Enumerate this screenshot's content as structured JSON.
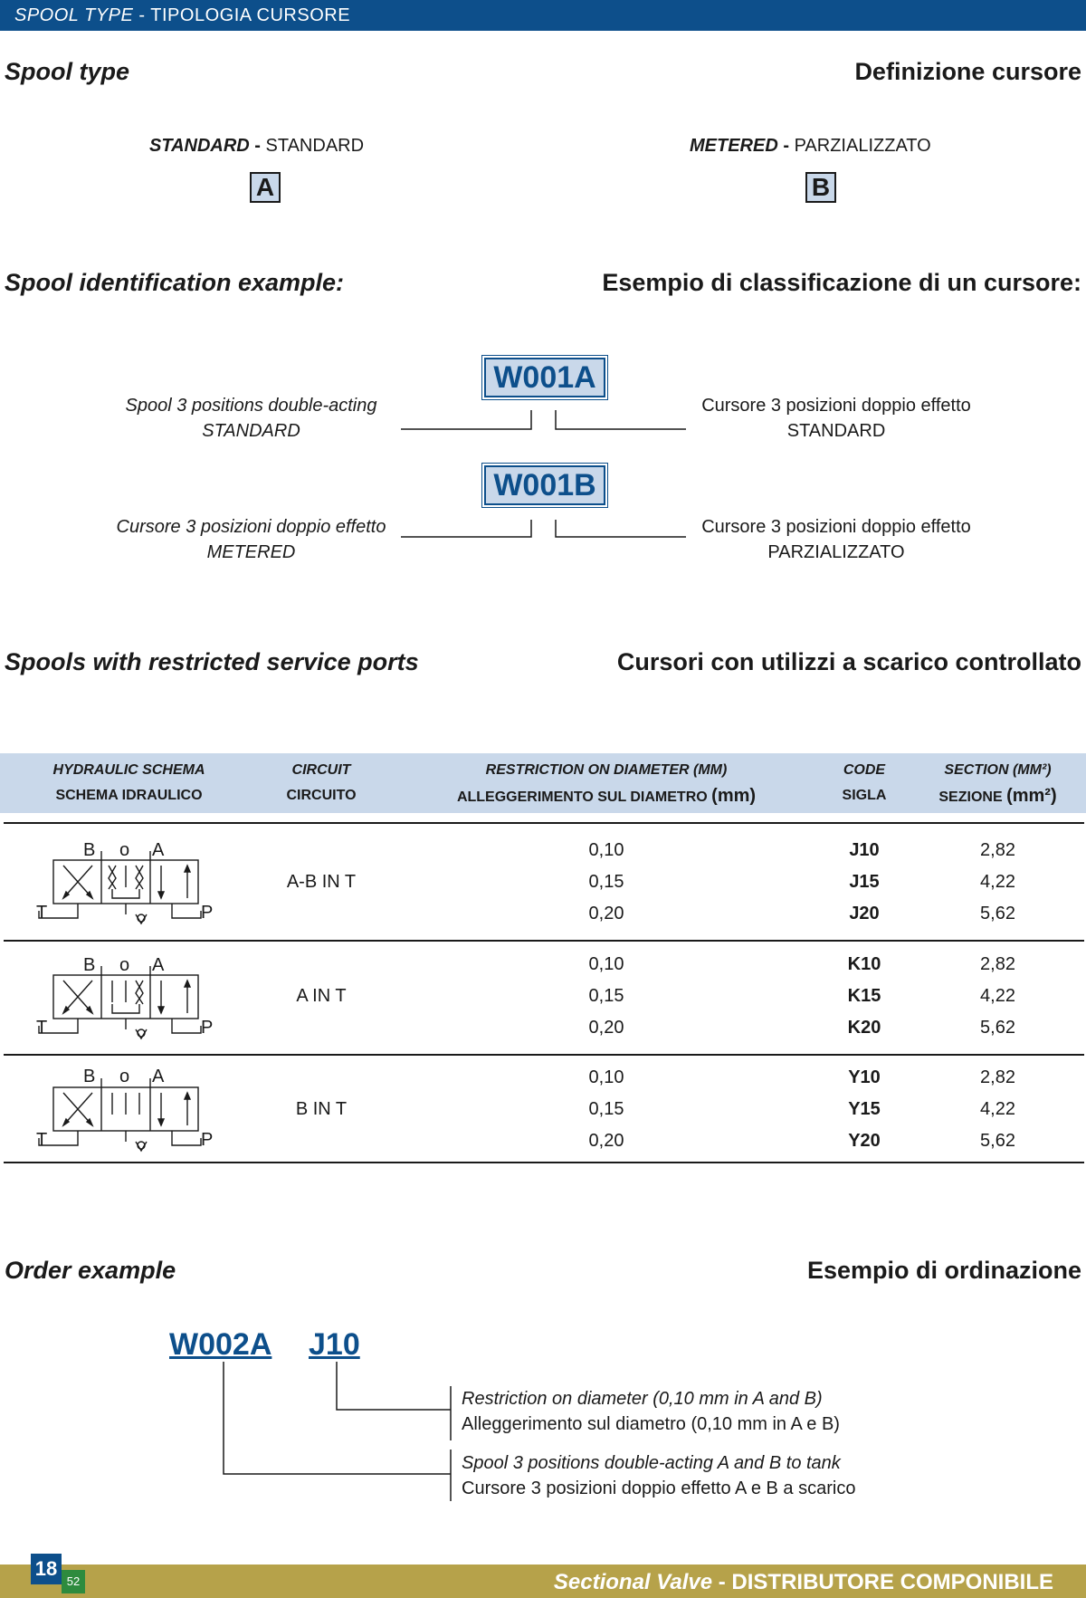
{
  "header": {
    "title_en": "SPOOL TYPE",
    "sep": " - ",
    "title_it": "TIPOLOGIA CURSORE"
  },
  "spool_type": {
    "heading_en": "Spool type",
    "heading_it": "Definizione cursore",
    "standard": {
      "en": "STANDARD",
      "sep": " - ",
      "it": "STANDARD",
      "letter": "A"
    },
    "metered": {
      "en": "METERED",
      "sep": " - ",
      "it": "PARZIALIZZATO",
      "letter": "B"
    }
  },
  "example": {
    "heading_en": "Spool identification example:",
    "heading_it": "Esempio di classificazione di un cursore:",
    "code_a": "W001A",
    "code_b": "W001B",
    "a_left_1": "Spool 3 positions double-acting",
    "a_left_2": "STANDARD",
    "a_right_1": "Cursore 3 posizioni doppio effetto",
    "a_right_2": "STANDARD",
    "b_left_1": "Cursore 3 posizioni doppio effetto",
    "b_left_2": "METERED",
    "b_right_1": "Cursore 3 posizioni doppio effetto",
    "b_right_2": "PARZIALIZZATO"
  },
  "restricted": {
    "heading_en": "Spools with restricted service ports",
    "heading_it": "Cursori con utilizzi a scarico controllato"
  },
  "table": {
    "headers": {
      "schema_en": "HYDRAULIC SCHEMA",
      "schema_it": "SCHEMA IDRAULICO",
      "circuit_en": "CIRCUIT",
      "circuit_it": "CIRCUITO",
      "restriction_en": "RESTRICTION ON DIAMETER",
      "restriction_en_unit": "(MM)",
      "restriction_it": "ALLEGGERIMENTO SUL DIAMETRO",
      "restriction_it_unit": "(mm)",
      "code_en": "CODE",
      "code_it": "SIGLA",
      "section_en": "SECTION",
      "section_en_unit": "(MM²)",
      "section_it": "SEZIONE",
      "section_it_unit": "(mm²)"
    },
    "symbol_labels": {
      "b": "B",
      "o": "o",
      "a": "A",
      "t": "T",
      "p": "P"
    },
    "groups": [
      {
        "circuit": "A-B IN T",
        "rows": [
          {
            "diameter": "0,10",
            "code": "J10",
            "section": "2,82"
          },
          {
            "diameter": "0,15",
            "code": "J15",
            "section": "4,22"
          },
          {
            "diameter": "0,20",
            "code": "J20",
            "section": "5,62"
          }
        ]
      },
      {
        "circuit": "A IN T",
        "rows": [
          {
            "diameter": "0,10",
            "code": "K10",
            "section": "2,82"
          },
          {
            "diameter": "0,15",
            "code": "K15",
            "section": "4,22"
          },
          {
            "diameter": "0,20",
            "code": "K20",
            "section": "5,62"
          }
        ]
      },
      {
        "circuit": "B IN T",
        "rows": [
          {
            "diameter": "0,10",
            "code": "Y10",
            "section": "2,82"
          },
          {
            "diameter": "0,15",
            "code": "Y15",
            "section": "4,22"
          },
          {
            "diameter": "0,20",
            "code": "Y20",
            "section": "5,62"
          }
        ]
      }
    ]
  },
  "order": {
    "heading_en": "Order example",
    "heading_it": "Esempio di ordinazione",
    "code_spool": "W002A",
    "code_restriction": "J10",
    "restriction_en": "Restriction on diameter (0,10 mm in A and B)",
    "restriction_it": "Alleggerimento sul diametro (0,10 mm in A e B)",
    "spool_en": "Spool 3 positions double-acting A and B to tank",
    "spool_it": "Cursore 3 posizioni doppio effetto A e B a scarico"
  },
  "footer": {
    "page_number": "18",
    "page_sub": "52",
    "title_en": "Sectional Valve",
    "sep": " - ",
    "title_it": "DISTRIBUTORE COMPONIBILE"
  },
  "colors": {
    "brand_blue": "#0d4f8b",
    "light_blue": "#c9d8ea",
    "footer_gold": "#b6a24a"
  }
}
